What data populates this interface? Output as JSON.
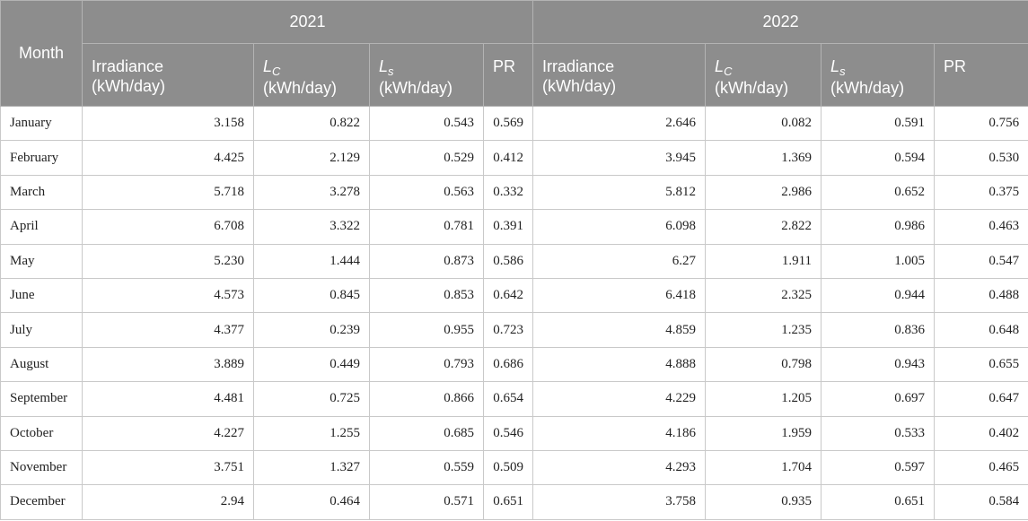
{
  "table": {
    "month_header": "Month",
    "years": [
      "2021",
      "2022"
    ],
    "columns": [
      {
        "label": "Irradiance",
        "unit": "(kWh/day)"
      },
      {
        "symbol": "L",
        "subscript": "C",
        "unit": "(kWh/day)"
      },
      {
        "symbol": "L",
        "subscript": "s",
        "unit": "(kWh/day)"
      },
      {
        "label": "PR"
      }
    ],
    "rows": [
      {
        "month": "January",
        "y2021": [
          "3.158",
          "0.822",
          "0.543",
          "0.569"
        ],
        "y2022": [
          "2.646",
          "0.082",
          "0.591",
          "0.756"
        ]
      },
      {
        "month": "February",
        "y2021": [
          "4.425",
          "2.129",
          "0.529",
          "0.412"
        ],
        "y2022": [
          "3.945",
          "1.369",
          "0.594",
          "0.530"
        ]
      },
      {
        "month": "March",
        "y2021": [
          "5.718",
          "3.278",
          "0.563",
          "0.332"
        ],
        "y2022": [
          "5.812",
          "2.986",
          "0.652",
          "0.375"
        ]
      },
      {
        "month": "April",
        "y2021": [
          "6.708",
          "3.322",
          "0.781",
          "0.391"
        ],
        "y2022": [
          "6.098",
          "2.822",
          "0.986",
          "0.463"
        ]
      },
      {
        "month": "May",
        "y2021": [
          "5.230",
          "1.444",
          "0.873",
          "0.586"
        ],
        "y2022": [
          "6.27",
          "1.911",
          "1.005",
          "0.547"
        ]
      },
      {
        "month": "June",
        "y2021": [
          "4.573",
          "0.845",
          "0.853",
          "0.642"
        ],
        "y2022": [
          "6.418",
          "2.325",
          "0.944",
          "0.488"
        ]
      },
      {
        "month": "July",
        "y2021": [
          "4.377",
          "0.239",
          "0.955",
          "0.723"
        ],
        "y2022": [
          "4.859",
          "1.235",
          "0.836",
          "0.648"
        ]
      },
      {
        "month": "August",
        "y2021": [
          "3.889",
          "0.449",
          "0.793",
          "0.686"
        ],
        "y2022": [
          "4.888",
          "0.798",
          "0.943",
          "0.655"
        ]
      },
      {
        "month": "September",
        "y2021": [
          "4.481",
          "0.725",
          "0.866",
          "0.654"
        ],
        "y2022": [
          "4.229",
          "1.205",
          "0.697",
          "0.647"
        ]
      },
      {
        "month": "October",
        "y2021": [
          "4.227",
          "1.255",
          "0.685",
          "0.546"
        ],
        "y2022": [
          "4.186",
          "1.959",
          "0.533",
          "0.402"
        ]
      },
      {
        "month": "November",
        "y2021": [
          "3.751",
          "1.327",
          "0.559",
          "0.509"
        ],
        "y2022": [
          "4.293",
          "1.704",
          "0.597",
          "0.465"
        ]
      },
      {
        "month": "December",
        "y2021": [
          "2.94",
          "0.464",
          "0.571",
          "0.651"
        ],
        "y2022": [
          "3.758",
          "0.935",
          "0.651",
          "0.584"
        ]
      }
    ]
  },
  "colors": {
    "header_background": "#8d8d8d",
    "header_text": "#ffffff",
    "cell_text": "#222222",
    "grid_line": "#c9c9c9"
  }
}
